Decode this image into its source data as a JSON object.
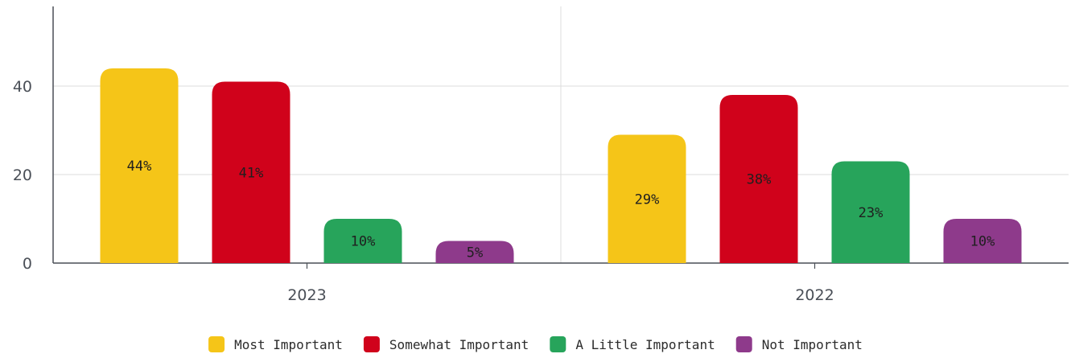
{
  "chart_data": {
    "type": "bar",
    "categories": [
      "2023",
      "2022"
    ],
    "series": [
      {
        "name": "Most Important",
        "values": [
          44,
          29
        ],
        "labels": [
          "44%",
          "29%"
        ],
        "color": "#f5c518"
      },
      {
        "name": "Somewhat Important",
        "values": [
          41,
          38
        ],
        "labels": [
          "41%",
          "38%"
        ],
        "color": "#d0021b"
      },
      {
        "name": "A Little Important",
        "values": [
          10,
          23
        ],
        "labels": [
          "10%",
          "23%"
        ],
        "color": "#27a45b"
      },
      {
        "name": "Not Important",
        "values": [
          5,
          10
        ],
        "labels": [
          "5%",
          "10%"
        ],
        "color": "#8e3a8b"
      }
    ],
    "title": "",
    "xlabel": "",
    "ylabel": "",
    "ylim": [
      0,
      58
    ],
    "yticks": [
      0,
      20,
      40
    ],
    "grid": true,
    "legend": "bottom-center"
  }
}
